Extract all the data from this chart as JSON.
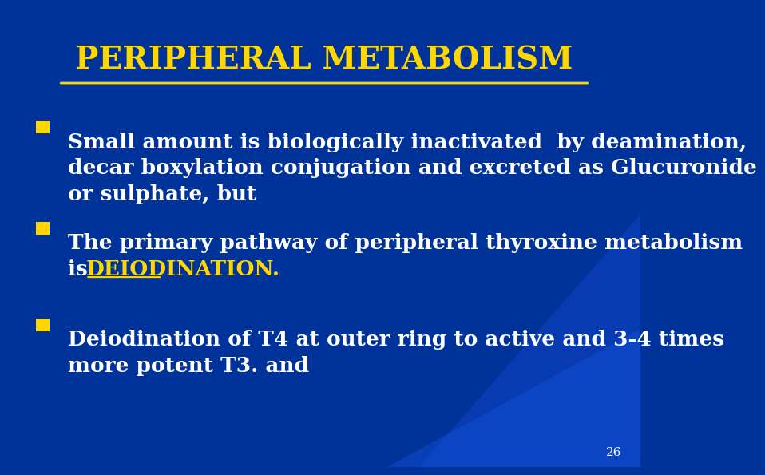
{
  "title": "PERIPHERAL METABOLISM",
  "title_color": "#FFD700",
  "title_underline": true,
  "title_fontsize": 28,
  "background_color": "#003399",
  "bullet_color": "#FFD700",
  "text_color": "#FFFFFF",
  "slide_number": "26",
  "slide_number_color": "#FFFFFF",
  "bullet_points": [
    {
      "lines": [
        "Small amount is biologically inactivated  by deamination,",
        "decar boxylation conjugation and excreted as Glucuronide",
        "or sulphate, but"
      ],
      "highlight_text": null,
      "highlight_line": null,
      "highlight_prefix": null
    },
    {
      "lines": [
        "The primary pathway of peripheral thyroxine metabolism",
        "is DEIODINATION."
      ],
      "highlight_text": "DEIODINATION.",
      "highlight_line": 1,
      "highlight_prefix": "is "
    },
    {
      "lines": [
        "Deiodination of T4 at outer ring to active and 3-4 times",
        "more potent T3. and"
      ],
      "highlight_text": null,
      "highlight_line": null,
      "highlight_prefix": null
    }
  ],
  "bullet_fontsize": 19,
  "figwidth": 7.92,
  "figheight": 5.76
}
